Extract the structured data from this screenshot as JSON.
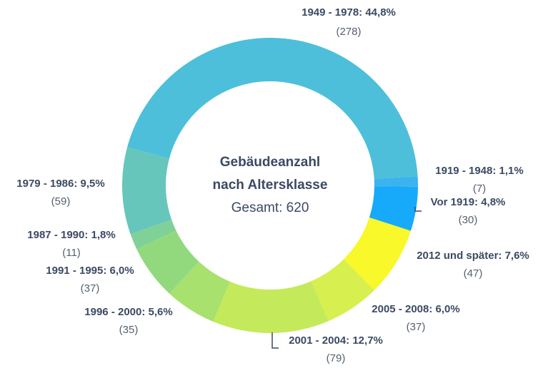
{
  "chart_data": {
    "type": "donut",
    "title_lines": [
      "Gebäudeanzahl",
      "nach Altersklasse"
    ],
    "subtitle": "Gesamt: 620",
    "categories": [
      "1949 - 1978",
      "1919 - 1948",
      "Vor 1919",
      "2012 und später",
      "2005 - 2008",
      "2001 - 2004",
      "1996 - 2000",
      "1991 - 1995",
      "1987 - 1990",
      "1979 - 1986"
    ],
    "labels": [
      "1949 - 1978: 44,8%",
      "1919 - 1948: 1,1%",
      "Vor 1919: 4,8%",
      "2012 und später: 7,6%",
      "2005 - 2008: 6,0%",
      "2001 - 2004: 12,7%",
      "1996 - 2000: 5,6%",
      "1991 - 1995: 6,0%",
      "1987 - 1990: 1,8%",
      "1979 - 1986: 9,5%"
    ],
    "values": [
      278,
      7,
      30,
      47,
      37,
      79,
      35,
      37,
      11,
      59
    ],
    "value_labels": [
      "(278)",
      "(7)",
      "(30)",
      "(47)",
      "(37)",
      "(79)",
      "(35)",
      "(37)",
      "(11)",
      "(59)"
    ],
    "colors": [
      "#4dbfda",
      "#3ab3ee",
      "#17a9fa",
      "#f8f82a",
      "#d7ef4f",
      "#c4ea5c",
      "#a8e16e",
      "#92d97e",
      "#80d198",
      "#66c6bc"
    ]
  }
}
